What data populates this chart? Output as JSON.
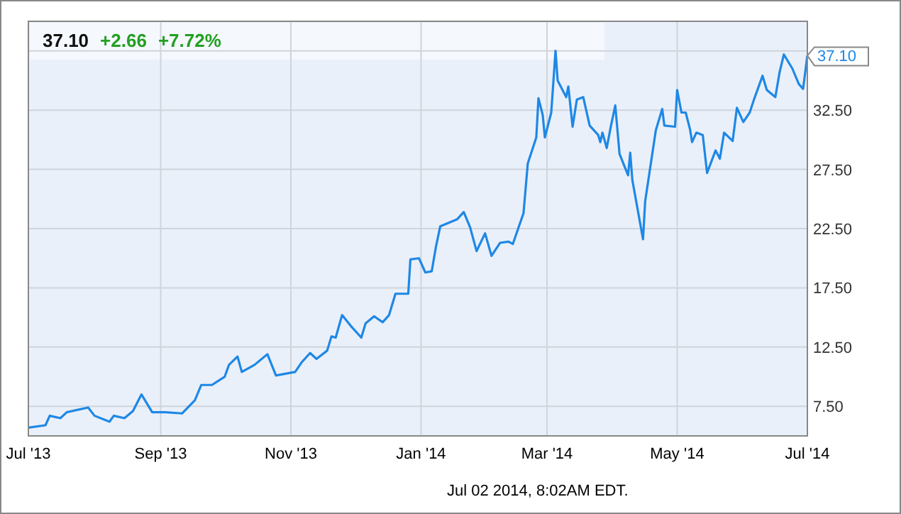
{
  "chart_data": {
    "type": "line",
    "title": "37.10 +2.66 +7.72%",
    "x": [
      "2013-07-01",
      "2013-07-09",
      "2013-07-11",
      "2013-07-16",
      "2013-07-19",
      "2013-07-29",
      "2013-08-01",
      "2013-08-08",
      "2013-08-10",
      "2013-08-15",
      "2013-08-19",
      "2013-08-23",
      "2013-08-28",
      "2013-09-03",
      "2013-09-11",
      "2013-09-17",
      "2013-09-20",
      "2013-09-25",
      "2013-10-01",
      "2013-10-03",
      "2013-10-07",
      "2013-10-09",
      "2013-10-15",
      "2013-10-21",
      "2013-10-25",
      "2013-11-03",
      "2013-11-06",
      "2013-11-10",
      "2013-11-13",
      "2013-11-18",
      "2013-11-20",
      "2013-11-22",
      "2013-11-25",
      "2013-11-29",
      "2013-12-04",
      "2013-12-06",
      "2013-12-10",
      "2013-12-14",
      "2013-12-17",
      "2013-12-20",
      "2013-12-26",
      "2013-12-27",
      "2013-12-31",
      "2014-01-03",
      "2014-01-06",
      "2014-01-08",
      "2014-01-10",
      "2014-01-18",
      "2014-01-21",
      "2014-01-24",
      "2014-01-27",
      "2014-01-31",
      "2014-02-03",
      "2014-02-07",
      "2014-02-11",
      "2014-02-13",
      "2014-02-18",
      "2014-02-20",
      "2014-02-24",
      "2014-02-25",
      "2014-02-27",
      "2014-02-28",
      "2014-03-03",
      "2014-03-05",
      "2014-03-06",
      "2014-03-10",
      "2014-03-11",
      "2014-03-13",
      "2014-03-15",
      "2014-03-18",
      "2014-03-21",
      "2014-03-25",
      "2014-03-26",
      "2014-03-27",
      "2014-03-29",
      "2014-03-31",
      "2014-04-02",
      "2014-04-04",
      "2014-04-08",
      "2014-04-09",
      "2014-04-10",
      "2014-04-15",
      "2014-04-16",
      "2014-04-21",
      "2014-04-24",
      "2014-04-25",
      "2014-04-30",
      "2014-05-01",
      "2014-05-03",
      "2014-05-05",
      "2014-05-07",
      "2014-05-08",
      "2014-05-10",
      "2014-05-13",
      "2014-05-15",
      "2014-05-19",
      "2014-05-21",
      "2014-05-23",
      "2014-05-27",
      "2014-05-29",
      "2014-06-01",
      "2014-06-04",
      "2014-06-06",
      "2014-06-10",
      "2014-06-12",
      "2014-06-16",
      "2014-06-18",
      "2014-06-20",
      "2014-06-24",
      "2014-06-27",
      "2014-06-29",
      "2014-07-01"
    ],
    "series": [
      {
        "color": "#1e88e5",
        "values": [
          5.7,
          5.9,
          6.7,
          6.5,
          7.0,
          7.4,
          6.7,
          6.2,
          6.7,
          6.5,
          7.1,
          8.5,
          7.0,
          7.0,
          6.9,
          8.0,
          9.3,
          9.3,
          10.0,
          11.0,
          11.7,
          10.4,
          11.0,
          11.9,
          10.1,
          10.4,
          11.2,
          12.0,
          11.5,
          12.2,
          13.4,
          13.3,
          15.2,
          14.3,
          13.3,
          14.5,
          15.1,
          14.6,
          15.2,
          17.0,
          17.0,
          19.9,
          20.0,
          18.8,
          18.9,
          21.0,
          22.7,
          23.3,
          23.9,
          22.6,
          20.6,
          22.1,
          20.2,
          21.3,
          21.4,
          21.2,
          23.8,
          28.0,
          30.2,
          33.5,
          32.1,
          30.2,
          32.3,
          37.5,
          35.0,
          33.6,
          34.5,
          31.1,
          33.4,
          33.6,
          31.2,
          30.4,
          29.8,
          30.6,
          29.3,
          31.2,
          32.9,
          28.8,
          27.0,
          28.9,
          26.6,
          21.6,
          24.8,
          30.8,
          32.6,
          31.2,
          31.1,
          34.2,
          32.3,
          32.3,
          30.9,
          29.8,
          30.6,
          30.4,
          27.2,
          29.1,
          28.4,
          30.6,
          29.9,
          32.7,
          31.5,
          32.3,
          33.4,
          35.4,
          34.2,
          33.6,
          35.7,
          37.2,
          36.0,
          34.7,
          34.3,
          37.1
        ]
      }
    ],
    "xlim": [
      "2013-07-01",
      "2014-07-01"
    ],
    "xticks": [
      {
        "value": "2013-07-01",
        "label": "Jul '13"
      },
      {
        "value": "2013-09-01",
        "label": "Sep '13"
      },
      {
        "value": "2013-11-01",
        "label": "Nov '13"
      },
      {
        "value": "2014-01-01",
        "label": "Jan '14"
      },
      {
        "value": "2014-03-01",
        "label": "Mar '14"
      },
      {
        "value": "2014-05-01",
        "label": "May '14"
      },
      {
        "value": "2014-07-01",
        "label": "Jul '14"
      }
    ],
    "ylim": [
      5,
      40
    ],
    "yticks": [
      {
        "value": 7.5,
        "label": "7.50"
      },
      {
        "value": 12.5,
        "label": "12.50"
      },
      {
        "value": 17.5,
        "label": "17.50"
      },
      {
        "value": 22.5,
        "label": "22.50"
      },
      {
        "value": 27.5,
        "label": "27.50"
      },
      {
        "value": 32.5,
        "label": "32.50"
      },
      {
        "value": 37.5,
        "label": null
      }
    ],
    "grid": true,
    "marker": "none",
    "line_style": "solid",
    "annotations": [
      {
        "text": "37.10",
        "x": "2014-07-01",
        "y": 37.1
      },
      "Jul 02 2014, 8:02AM EDT."
    ]
  }
}
